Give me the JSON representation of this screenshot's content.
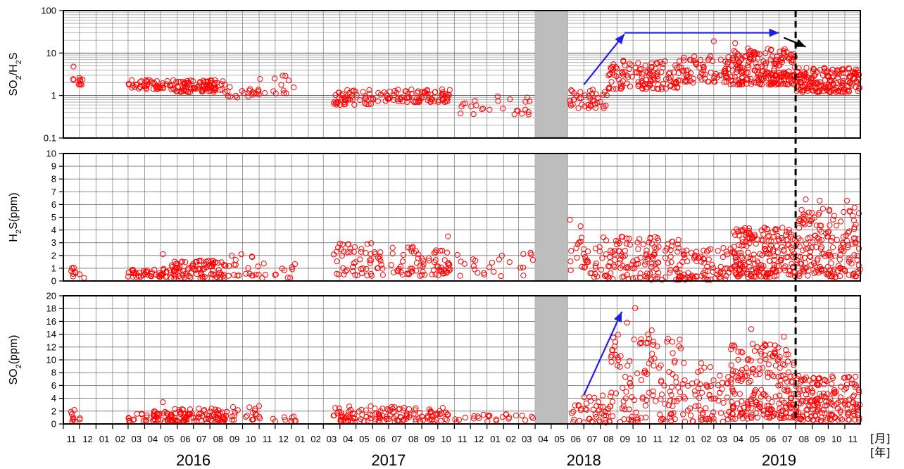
{
  "chart_data": {
    "type": "scatter",
    "x_unit_label": "[月]",
    "year_unit_label": "[年]",
    "month_ticks": [
      "11",
      "12",
      "01",
      "02",
      "03",
      "04",
      "05",
      "06",
      "07",
      "08",
      "09",
      "10",
      "11",
      "12",
      "01",
      "02",
      "03",
      "04",
      "05",
      "06",
      "07",
      "08",
      "09",
      "10",
      "11",
      "12",
      "01",
      "02",
      "03",
      "04",
      "05",
      "06",
      "07",
      "08",
      "09",
      "10",
      "11",
      "12",
      "01",
      "02",
      "03",
      "04",
      "05",
      "06",
      "07",
      "08",
      "09",
      "10",
      "11"
    ],
    "x_range": [
      "2015-11-01",
      "2019-11-30"
    ],
    "years": [
      "2016",
      "2017",
      "2018",
      "2019"
    ],
    "gap_period": {
      "start": "2018-04-01",
      "end": "2018-06-01",
      "color": "#bdbdbd"
    },
    "marker_date": "2019-08-01",
    "marker_style": "black dashed vertical line",
    "marker_color": "#000000",
    "series_color": "#ff0000",
    "arrow_color": "#1f1fe6",
    "panels": [
      {
        "key": "ratio",
        "ylabel_parts": [
          [
            "SO",
            "n"
          ],
          [
            "2",
            "sub"
          ],
          [
            "/H",
            "n"
          ],
          [
            "2",
            "sub"
          ],
          [
            "S",
            "n"
          ]
        ],
        "y_scale": "log",
        "ylim": [
          0.1,
          100
        ],
        "yticks": [
          0.1,
          1,
          10,
          100
        ],
        "ytick_labels": [
          "0.1",
          "1",
          "10",
          "100"
        ],
        "segments": [
          {
            "start": "2015-11-15",
            "end": "2015-12-10",
            "n": 10,
            "lo": 1.7,
            "hi": 2.6
          },
          {
            "start": "2016-03-01",
            "end": "2016-05-20",
            "n": 45,
            "lo": 1.4,
            "hi": 2.4
          },
          {
            "start": "2016-05-20",
            "end": "2016-09-01",
            "n": 95,
            "lo": 1.2,
            "hi": 2.3
          },
          {
            "start": "2016-09-01",
            "end": "2016-11-01",
            "n": 20,
            "lo": 0.9,
            "hi": 1.6
          },
          {
            "start": "2016-11-01",
            "end": "2017-01-10",
            "n": 12,
            "lo": 1.1,
            "hi": 3.0
          },
          {
            "start": "2017-03-20",
            "end": "2017-06-01",
            "n": 45,
            "lo": 0.6,
            "hi": 1.4
          },
          {
            "start": "2017-06-01",
            "end": "2017-10-25",
            "n": 85,
            "lo": 0.7,
            "hi": 1.4
          },
          {
            "start": "2017-11-01",
            "end": "2018-03-31",
            "n": 25,
            "lo": 0.35,
            "hi": 1.0
          },
          {
            "start": "2018-06-05",
            "end": "2018-08-15",
            "n": 40,
            "lo": 0.5,
            "hi": 1.5
          },
          {
            "start": "2018-08-15",
            "end": "2018-12-31",
            "n": 130,
            "lo": 1.4,
            "hi": 7.0
          },
          {
            "start": "2019-01-01",
            "end": "2019-03-31",
            "n": 70,
            "lo": 2.0,
            "hi": 9.0
          },
          {
            "start": "2019-04-01",
            "end": "2019-07-31",
            "n": 210,
            "lo": 1.8,
            "hi": 13.0
          },
          {
            "start": "2019-08-01",
            "end": "2019-11-30",
            "n": 180,
            "lo": 1.2,
            "hi": 4.5
          }
        ],
        "outliers": [
          {
            "date": "2015-11-20",
            "v": 4.8
          },
          {
            "date": "2016-12-20",
            "v": 2.9
          },
          {
            "date": "2019-03-01",
            "v": 19.0
          },
          {
            "date": "2019-04-10",
            "v": 17.0
          },
          {
            "date": "2019-06-10",
            "v": 12.5
          }
        ],
        "arrows": [
          {
            "from": [
              "2018-07-01",
              1.8
            ],
            "to": [
              "2018-09-15",
              28
            ],
            "color": "#1f1fe6"
          },
          {
            "from": [
              "2018-09-15",
              30
            ],
            "to": [
              "2019-07-01",
              30
            ],
            "color": "#1f1fe6"
          },
          {
            "from": [
              "2019-07-10",
              23
            ],
            "to": [
              "2019-08-20",
              14
            ],
            "color": "#000000"
          }
        ]
      },
      {
        "key": "h2s",
        "ylabel_parts": [
          [
            "H",
            "n"
          ],
          [
            "2",
            "sub"
          ],
          [
            "S(ppm)",
            "n"
          ]
        ],
        "y_scale": "linear",
        "ylim": [
          0,
          10
        ],
        "yticks": [
          0,
          1,
          2,
          3,
          4,
          5,
          6,
          7,
          8,
          9,
          10
        ],
        "ytick_labels": [
          "0",
          "1",
          "2",
          "3",
          "4",
          "5",
          "6",
          "7",
          "8",
          "9",
          "10"
        ],
        "segments": [
          {
            "start": "2015-11-15",
            "end": "2015-12-10",
            "n": 10,
            "lo": 0.2,
            "hi": 1.2
          },
          {
            "start": "2016-03-01",
            "end": "2016-05-20",
            "n": 45,
            "lo": 0.3,
            "hi": 1.0
          },
          {
            "start": "2016-05-20",
            "end": "2016-09-01",
            "n": 95,
            "lo": 0.2,
            "hi": 1.6
          },
          {
            "start": "2016-09-01",
            "end": "2016-11-01",
            "n": 20,
            "lo": 0.4,
            "hi": 2.6
          },
          {
            "start": "2016-11-01",
            "end": "2017-01-10",
            "n": 12,
            "lo": 0.2,
            "hi": 1.4
          },
          {
            "start": "2017-03-20",
            "end": "2017-06-01",
            "n": 45,
            "lo": 0.4,
            "hi": 3.0
          },
          {
            "start": "2017-06-01",
            "end": "2017-10-25",
            "n": 85,
            "lo": 0.4,
            "hi": 2.7
          },
          {
            "start": "2017-11-01",
            "end": "2018-03-31",
            "n": 25,
            "lo": 0.3,
            "hi": 2.3
          },
          {
            "start": "2018-06-05",
            "end": "2018-08-15",
            "n": 40,
            "lo": 0.3,
            "hi": 3.6
          },
          {
            "start": "2018-08-15",
            "end": "2018-12-31",
            "n": 130,
            "lo": 0.1,
            "hi": 3.5
          },
          {
            "start": "2019-01-01",
            "end": "2019-03-31",
            "n": 70,
            "lo": 0.1,
            "hi": 2.6
          },
          {
            "start": "2019-04-01",
            "end": "2019-07-31",
            "n": 210,
            "lo": 0.3,
            "hi": 4.2
          },
          {
            "start": "2019-08-01",
            "end": "2019-11-30",
            "n": 180,
            "lo": 0.3,
            "hi": 5.8
          }
        ],
        "outliers": [
          {
            "date": "2016-05-05",
            "v": 2.1
          },
          {
            "date": "2017-10-20",
            "v": 3.5
          },
          {
            "date": "2018-06-05",
            "v": 4.8
          },
          {
            "date": "2018-06-25",
            "v": 4.3
          },
          {
            "date": "2019-08-20",
            "v": 6.4
          },
          {
            "date": "2019-09-15",
            "v": 6.3
          },
          {
            "date": "2019-11-05",
            "v": 6.3
          }
        ],
        "arrows": []
      },
      {
        "key": "so2",
        "ylabel_parts": [
          [
            "SO",
            "n"
          ],
          [
            "2",
            "sub"
          ],
          [
            "(ppm)",
            "n"
          ]
        ],
        "y_scale": "linear",
        "ylim": [
          0,
          20
        ],
        "yticks": [
          0,
          2,
          4,
          6,
          8,
          10,
          12,
          14,
          16,
          18,
          20
        ],
        "ytick_labels": [
          "0",
          "2",
          "4",
          "6",
          "8",
          "10",
          "12",
          "14",
          "16",
          "18",
          "20"
        ],
        "segments": [
          {
            "start": "2015-11-15",
            "end": "2015-12-10",
            "n": 10,
            "lo": 0.4,
            "hi": 2.2
          },
          {
            "start": "2016-03-01",
            "end": "2016-05-20",
            "n": 45,
            "lo": 0.4,
            "hi": 2.0
          },
          {
            "start": "2016-05-20",
            "end": "2016-09-01",
            "n": 95,
            "lo": 0.3,
            "hi": 2.4
          },
          {
            "start": "2016-09-01",
            "end": "2016-11-01",
            "n": 20,
            "lo": 0.5,
            "hi": 3.0
          },
          {
            "start": "2016-11-01",
            "end": "2017-01-10",
            "n": 12,
            "lo": 0.4,
            "hi": 1.6
          },
          {
            "start": "2017-03-20",
            "end": "2017-06-01",
            "n": 45,
            "lo": 0.4,
            "hi": 2.8
          },
          {
            "start": "2017-06-01",
            "end": "2017-10-25",
            "n": 85,
            "lo": 0.4,
            "hi": 2.7
          },
          {
            "start": "2017-11-01",
            "end": "2018-03-31",
            "n": 25,
            "lo": 0.3,
            "hi": 1.6
          },
          {
            "start": "2018-06-05",
            "end": "2018-08-15",
            "n": 40,
            "lo": 0.2,
            "hi": 4.5
          },
          {
            "start": "2018-08-15",
            "end": "2018-12-31",
            "n": 130,
            "lo": 0.3,
            "hi": 14.0
          },
          {
            "start": "2019-01-01",
            "end": "2019-03-31",
            "n": 70,
            "lo": 0.3,
            "hi": 9.5
          },
          {
            "start": "2019-04-01",
            "end": "2019-07-31",
            "n": 210,
            "lo": 0.8,
            "hi": 12.5
          },
          {
            "start": "2019-08-01",
            "end": "2019-11-30",
            "n": 180,
            "lo": 0.5,
            "hi": 7.5
          }
        ],
        "outliers": [
          {
            "date": "2016-05-05",
            "v": 3.4
          },
          {
            "date": "2018-10-05",
            "v": 18.1
          },
          {
            "date": "2018-09-20",
            "v": 15.8
          },
          {
            "date": "2018-11-05",
            "v": 14.6
          },
          {
            "date": "2019-05-10",
            "v": 14.8
          },
          {
            "date": "2019-07-10",
            "v": 13.6
          }
        ],
        "arrows": [
          {
            "from": [
              "2018-07-01",
              4.5
            ],
            "to": [
              "2018-09-10",
              17.5
            ],
            "color": "#1f1fe6"
          }
        ]
      }
    ]
  }
}
